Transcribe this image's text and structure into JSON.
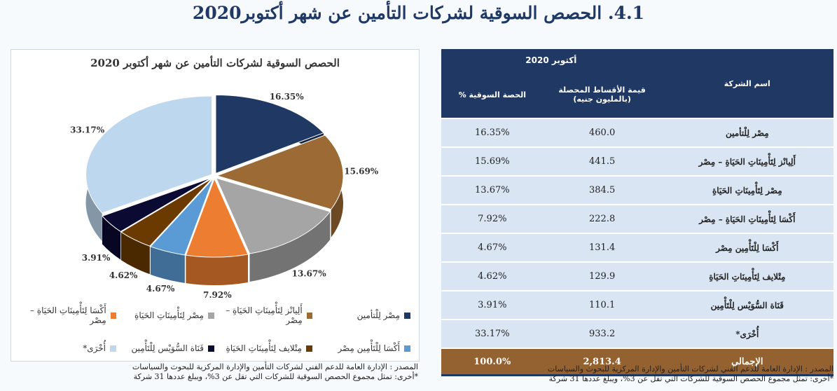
{
  "title": "4.1. الحصص السوقية لشركات التأمين عن شهر أكتوبر2020",
  "chart_data": {
    "type": "pie",
    "title": "الحصص السوقية لشركات التأمين عن شهر أكتوبر 2020",
    "labels": [
      "مِصْر لِلْتأمين",
      "أَلِيانْز لِتَأْمِينَاتِ الحَيَاةِ – مِصْر",
      "مِصْر لِتَأْمِينَاتِ الحَيَاةِ",
      "أَكْسَا لِتَأْمِينَاتِ الحَيَاةِ – مِصْر",
      "أَكْسَا لِلْتَأْمِين مِصْر",
      "مِتْلايف لِتَأْمِينَاتِ الحَيَاةِ",
      "قَنَاة السُّوَيْس لِلْتَأْمِين",
      "أُخْرَى*"
    ],
    "values": [
      16.35,
      15.69,
      13.67,
      7.92,
      4.67,
      4.62,
      3.91,
      33.17
    ],
    "value_labels": [
      "16.35%",
      "15.69%",
      "13.67%",
      "7.92%",
      "4.67%",
      "4.62%",
      "3.91%",
      "33.17%"
    ],
    "colors": [
      "#1f3864",
      "#9c6a34",
      "#a5a5a5",
      "#ed7d31",
      "#5b9bd5",
      "#6b3a00",
      "#0a0a33",
      "#bdd7ee"
    ],
    "legend_placement": "bottom",
    "style": "3d"
  },
  "table": {
    "period": "أكتوبر 2020",
    "headers": {
      "company": "اسم الشركة",
      "premiums": "قيمة الأقساط المحصلة (بالمليون جنيه)",
      "share": "الحصة السوقية %"
    },
    "rows": [
      {
        "company": "مِصْر لِلْتأمين",
        "premiums": "460.0",
        "share": "16.35%"
      },
      {
        "company": "أَلِيانْز لِتَأْمِينَاتِ الحَيَاةِ – مِصْر",
        "premiums": "441.5",
        "share": "15.69%"
      },
      {
        "company": "مِصْر لِتَأْمِينَاتِ الحَيَاةِ",
        "premiums": "384.5",
        "share": "13.67%"
      },
      {
        "company": "أَكْسَا لِتَأْمِينَاتِ الحَيَاةِ – مِصْر",
        "premiums": "222.8",
        "share": "7.92%"
      },
      {
        "company": "أَكْسَا لِلْتَأْمِين مِصْر",
        "premiums": "131.4",
        "share": "4.67%"
      },
      {
        "company": "مِتْلايف لِتَأْمِينَاتِ الحَيَاةِ",
        "premiums": "129.9",
        "share": "4.62%"
      },
      {
        "company": "قَنَاة السُّوَيْس لِلْتَأْمِين",
        "premiums": "110.1",
        "share": "3.91%"
      },
      {
        "company": "أُخْرَى*",
        "premiums": "933.2",
        "share": "33.17%"
      }
    ],
    "total": {
      "company": "الإجمالي",
      "premiums": "2,813.4",
      "share": "100.0%"
    }
  },
  "notes": {
    "source": "المصدر : الإدارة العامة للدعم الفني لشركات التأمين والإدارة المركزية للبحوث والسياسات",
    "others": "*أخرى: تمثل مجموع الحصص السوقية للشركات التي تقل عن 3%، ويبلغ عددها 31 شركة"
  }
}
